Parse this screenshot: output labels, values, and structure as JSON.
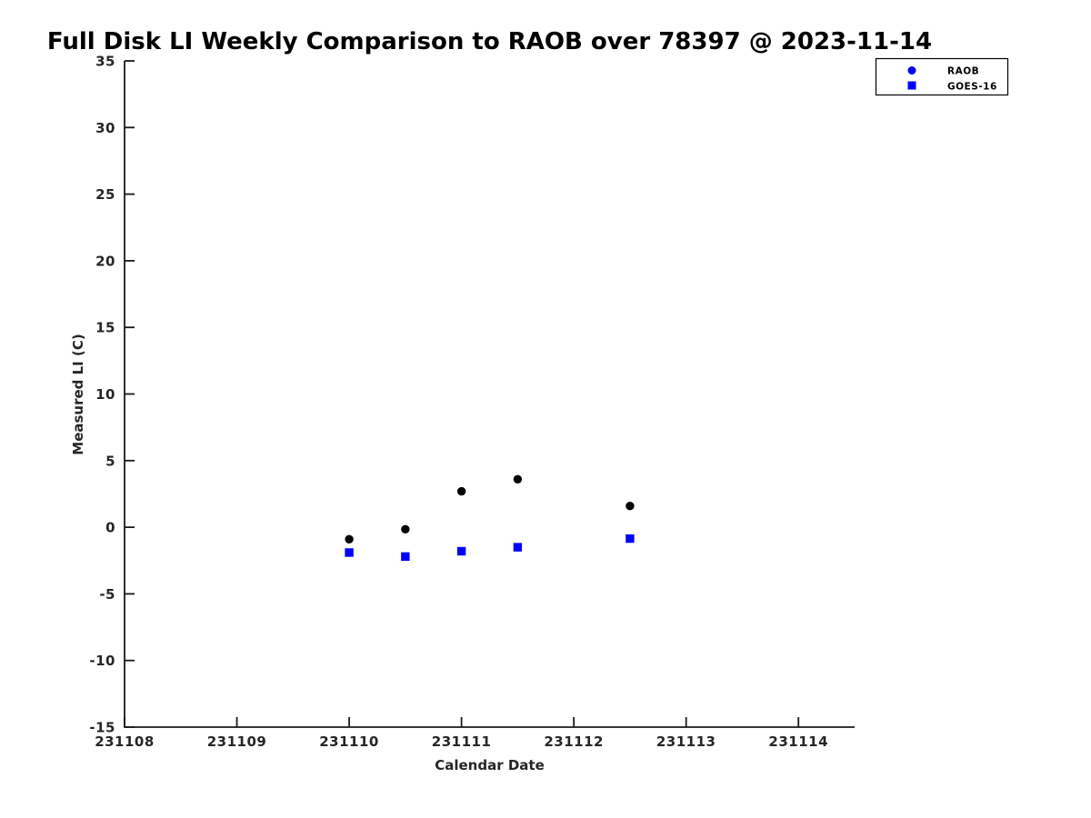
{
  "chart_data": {
    "type": "scatter",
    "title": "Full Disk LI Weekly Comparison to RAOB over 78397 @ 2023-11-14",
    "xlabel": "Calendar Date",
    "ylabel": "Measured LI (C)",
    "xlim": [
      231108,
      231114.5
    ],
    "ylim": [
      -15,
      35
    ],
    "xticks": [
      231108,
      231109,
      231110,
      231111,
      231112,
      231113,
      231114
    ],
    "yticks": [
      -15,
      -10,
      -5,
      0,
      5,
      10,
      15,
      20,
      25,
      30,
      35
    ],
    "grid": false,
    "legend_position": "top-right",
    "x": [
      231110,
      231110.5,
      231111,
      231111.5,
      231112.5
    ],
    "series": [
      {
        "name": "RAOB",
        "marker": "circle",
        "color": "#000000",
        "legend_marker_color": "#0000ff",
        "values": [
          -0.9,
          -0.15,
          2.7,
          3.6,
          1.6
        ]
      },
      {
        "name": "GOES-16",
        "marker": "square",
        "color": "#0000ff",
        "legend_marker_color": "#0000ff",
        "values": [
          -1.9,
          -2.2,
          -1.8,
          -1.5,
          -0.85
        ]
      }
    ]
  },
  "colors": {
    "background": "#ffffff",
    "axis": "#1a1a1a",
    "tick_label": "#262626",
    "legend_border": "#000000",
    "legend_fill": "#ffffff"
  }
}
